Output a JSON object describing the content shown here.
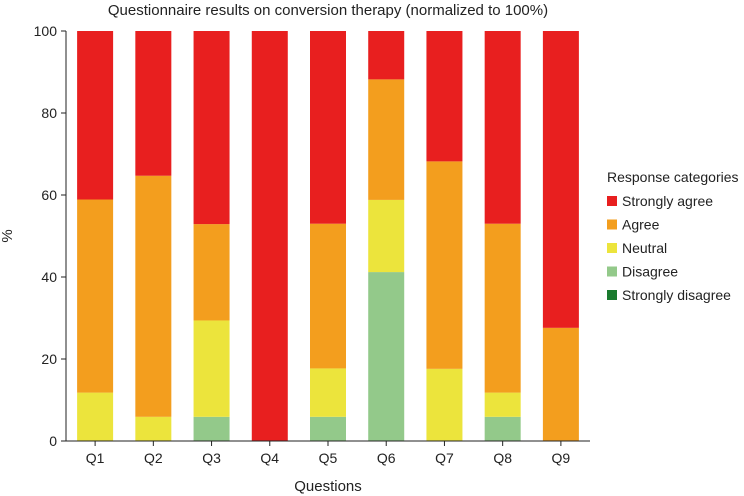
{
  "chart_data": {
    "type": "bar",
    "stacked": true,
    "title": "Questionnaire results on conversion therapy (normalized to 100%)",
    "xlabel": "Questions",
    "ylabel": "%",
    "ylim": [
      0,
      100
    ],
    "yticks": [
      0,
      20,
      40,
      60,
      80,
      100
    ],
    "categories": [
      "Q1",
      "Q2",
      "Q3",
      "Q4",
      "Q5",
      "Q6",
      "Q7",
      "Q8",
      "Q9"
    ],
    "legend_title": "Response categories",
    "legend_position": "right",
    "series": [
      {
        "name": "Strongly disagree",
        "color": "#1a7a2e",
        "values": [
          0,
          0,
          0,
          0,
          0,
          0,
          0,
          0,
          0
        ]
      },
      {
        "name": "Disagree",
        "color": "#93c98a",
        "values": [
          0,
          0,
          5.9,
          0,
          5.9,
          41.2,
          0,
          5.9,
          0
        ]
      },
      {
        "name": "Neutral",
        "color": "#ece43c",
        "values": [
          11.8,
          5.9,
          23.5,
          0,
          11.8,
          17.6,
          17.6,
          5.9,
          0
        ]
      },
      {
        "name": "Agree",
        "color": "#f39e1e",
        "values": [
          47.1,
          58.8,
          23.5,
          0,
          35.3,
          29.4,
          50.6,
          41.2,
          27.6
        ]
      },
      {
        "name": "Strongly agree",
        "color": "#e81f1f",
        "values": [
          41.1,
          35.3,
          47.1,
          100,
          47.0,
          11.8,
          31.8,
          47.0,
          72.4
        ]
      }
    ],
    "legend_order": [
      "Strongly agree",
      "Agree",
      "Neutral",
      "Disagree",
      "Strongly disagree"
    ]
  }
}
